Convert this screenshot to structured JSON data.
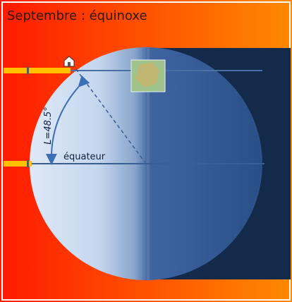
{
  "title": "Septembre : équinoxe",
  "labels": {
    "latitude": "L=48.5°",
    "equator": "équateur"
  }
}
